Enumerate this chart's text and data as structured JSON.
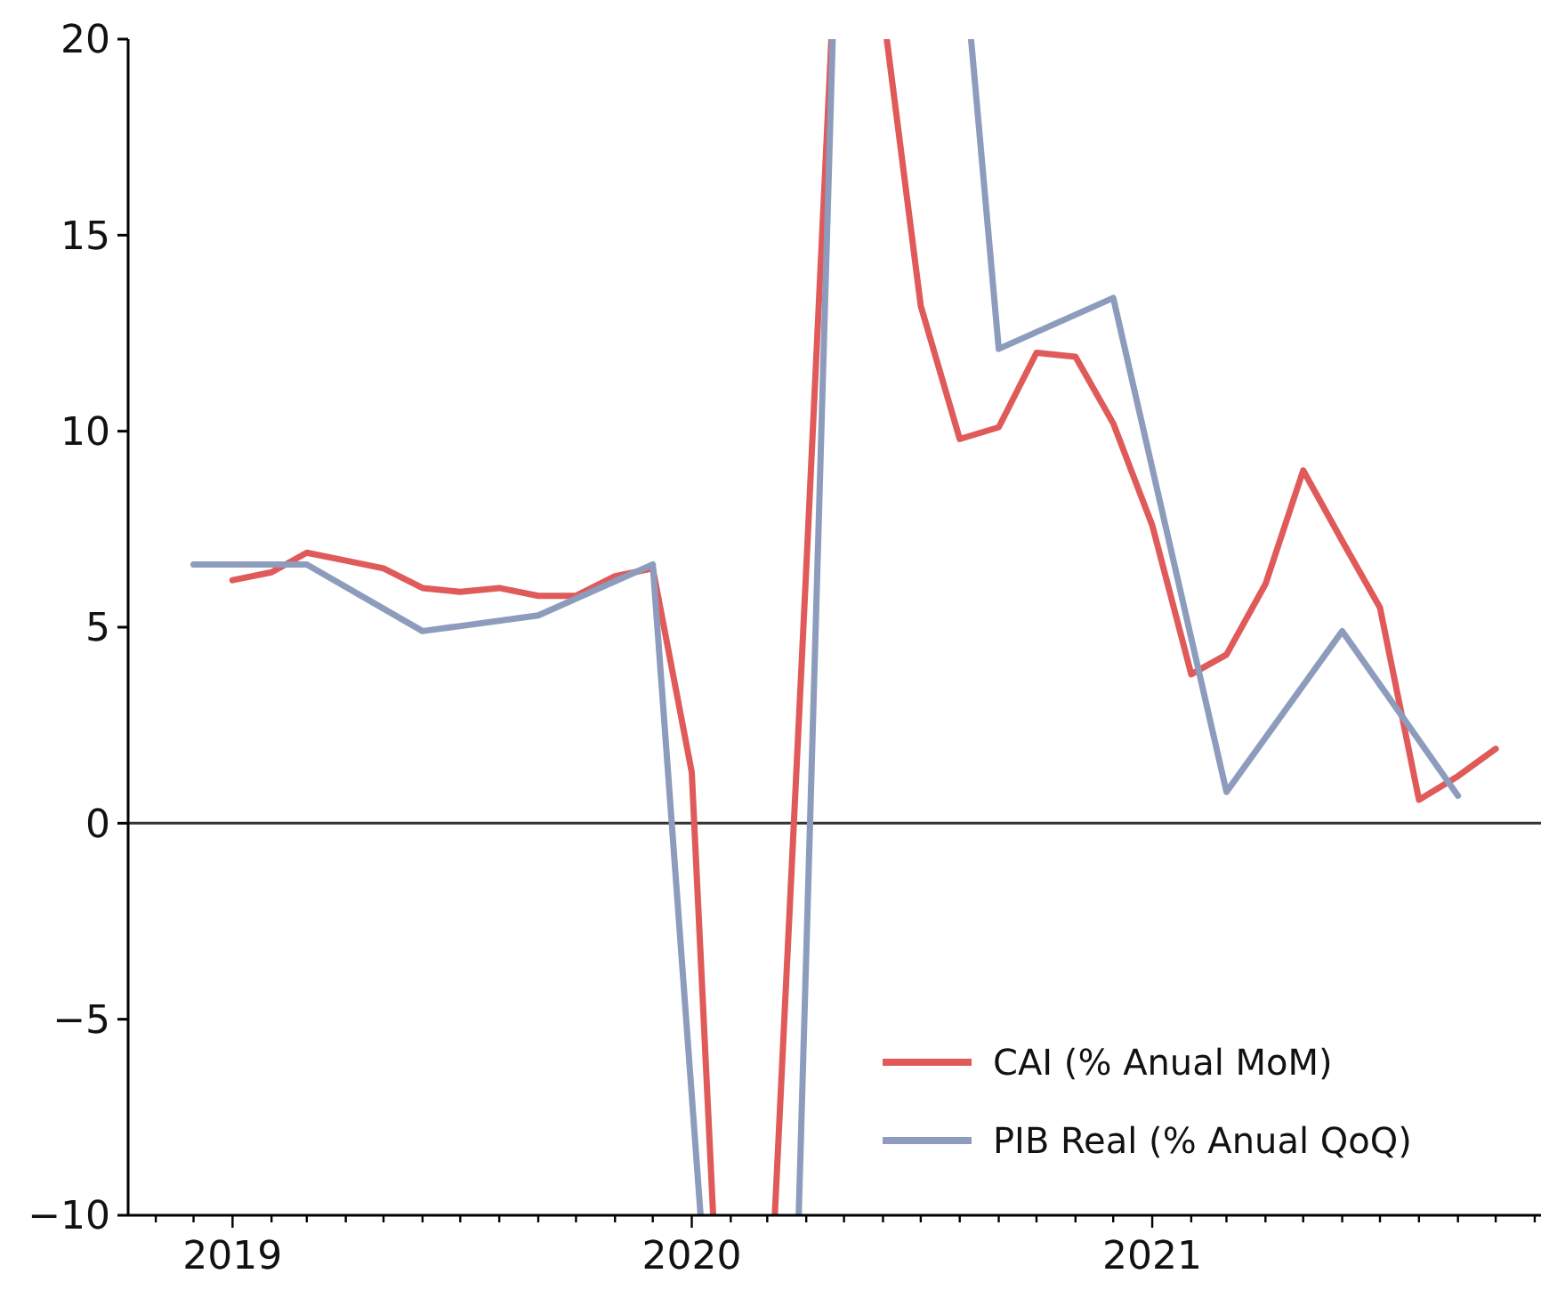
{
  "chart_data": {
    "type": "line",
    "xlim": [
      "2018-10-10",
      "2021-11-06"
    ],
    "xticks": [
      "2019",
      "2020",
      "2021",
      {
        "value": "2018-11",
        "label": null
      },
      {
        "value": "2018-12",
        "label": null
      },
      {
        "value": "2019-02",
        "label": null
      },
      {
        "value": "2019-03",
        "label": null
      },
      {
        "value": "2019-04",
        "label": null
      },
      {
        "value": "2019-05",
        "label": null
      },
      {
        "value": "2019-06",
        "label": null
      },
      {
        "value": "2019-07",
        "label": null
      },
      {
        "value": "2019-08",
        "label": null
      },
      {
        "value": "2019-09",
        "label": null
      },
      {
        "value": "2019-10",
        "label": null
      },
      {
        "value": "2019-11",
        "label": null
      },
      {
        "value": "2019-12",
        "label": null
      },
      {
        "value": "2020-02",
        "label": null
      },
      {
        "value": "2020-03",
        "label": null
      },
      {
        "value": "2020-04",
        "label": null
      },
      {
        "value": "2020-05",
        "label": null
      },
      {
        "value": "2020-06",
        "label": null
      },
      {
        "value": "2020-07",
        "label": null
      },
      {
        "value": "2020-08",
        "label": null
      },
      {
        "value": "2020-09",
        "label": null
      },
      {
        "value": "2020-10",
        "label": null
      },
      {
        "value": "2020-11",
        "label": null
      },
      {
        "value": "2020-12",
        "label": null
      },
      {
        "value": "2021-02",
        "label": null
      },
      {
        "value": "2021-03",
        "label": null
      },
      {
        "value": "2021-04",
        "label": null
      },
      {
        "value": "2021-05",
        "label": null
      },
      {
        "value": "2021-06",
        "label": null
      },
      {
        "value": "2021-07",
        "label": null
      },
      {
        "value": "2021-08",
        "label": null
      },
      {
        "value": "2021-09",
        "label": null
      },
      {
        "value": "2021-10",
        "label": null
      },
      {
        "value": "2021-11",
        "label": null
      }
    ],
    "ylim": [
      -10,
      20
    ],
    "yticks": [
      -10,
      -5,
      0,
      5,
      10,
      15,
      20
    ],
    "grid": false,
    "legend": "bottom right",
    "line_style": "solid",
    "marker": "none",
    "ref_lines": [
      {
        "axis": "y",
        "value": 0,
        "color": "#333333"
      }
    ],
    "series": [
      {
        "name": "CAI (% Anual MoM)",
        "color": "#e05a5a",
        "x": [
          "2019-01",
          "2019-02",
          "2019-03",
          "2019-04",
          "2019-05",
          "2019-06",
          "2019-07",
          "2019-08",
          "2019-09",
          "2019-10",
          "2019-11",
          "2019-12",
          "2020-01",
          "2020-01-18",
          "2020-02",
          "2020-03-07",
          "2020-04",
          "2020-04-21",
          "2020-05",
          "2020-06-04",
          "2020-07",
          "2020-08",
          "2020-09",
          "2020-10",
          "2020-11",
          "2020-12",
          "2021-01",
          "2021-02",
          "2021-03",
          "2021-04",
          "2021-05",
          "2021-06",
          "2021-07",
          "2021-08",
          "2021-09",
          "2021-10"
        ],
        "values": [
          6.2,
          6.4,
          6.9,
          6.7,
          6.5,
          6.0,
          5.9,
          6.0,
          5.8,
          5.8,
          6.3,
          6.5,
          1.3,
          -10,
          null,
          -10,
          6.5,
          20,
          null,
          20,
          13.2,
          9.8,
          10.1,
          12.0,
          11.9,
          10.2,
          7.6,
          3.8,
          4.3,
          6.1,
          9.0,
          7.2,
          5.5,
          0.6,
          1.2,
          1.9
        ]
      },
      {
        "name": "PIB Real (% Anual QoQ)",
        "color": "#8d9cbd",
        "x": [
          "2018-12",
          "2019-03",
          "2019-06",
          "2019-09",
          "2019-12",
          "2020-01-08",
          "2020-03",
          "2020-03-26",
          "2020-04-22",
          "2020-06",
          "2020-08-10",
          "2020-09",
          "2020-12",
          "2021-03",
          "2021-06",
          "2021-09"
        ],
        "values": [
          6.6,
          6.6,
          4.9,
          5.3,
          6.6,
          -10,
          null,
          -10,
          20,
          null,
          20,
          12.1,
          13.4,
          0.8,
          4.9,
          0.7
        ]
      }
    ]
  }
}
